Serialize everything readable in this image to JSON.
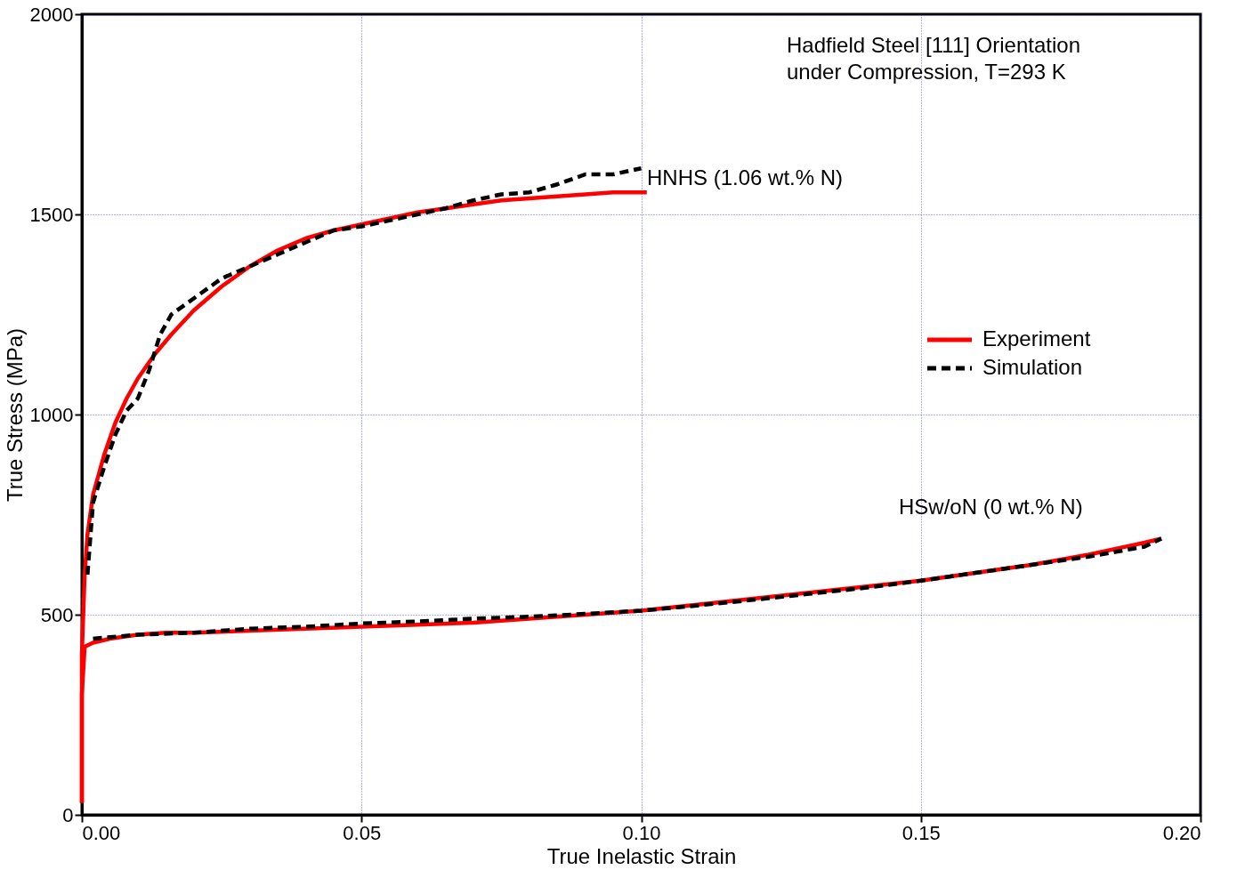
{
  "chart_data": {
    "type": "line",
    "xlabel": "True Inelastic Strain",
    "ylabel": "True Stress (MPa)",
    "xlim": [
      0,
      0.2
    ],
    "ylim": [
      0,
      2000
    ],
    "xticks": [
      {
        "value": 0,
        "label": "0.00"
      },
      {
        "value": 0.05,
        "label": "0.05"
      },
      {
        "value": 0.1,
        "label": "0.10"
      },
      {
        "value": 0.15,
        "label": "0.15"
      },
      {
        "value": 0.2,
        "label": "0.20"
      }
    ],
    "yticks": [
      0,
      500,
      1000,
      1500,
      2000
    ],
    "grid": true,
    "legend": "right",
    "annotations": [
      "Hadfield Steel [111] Orientation\nunder Compression, T=293 K",
      "HNHS (1.06 wt.% N)",
      "HSw/oN (0 wt.% N)"
    ],
    "series": [
      {
        "name": "Experiment",
        "color": "#ff0000",
        "line_style": "solid",
        "x": [
          0,
          0,
          0.0005,
          0.001,
          0.002,
          0.004,
          0.006,
          0.008,
          0.01,
          0.013,
          0.016,
          0.02,
          0.025,
          0.03,
          0.035,
          0.04,
          0.045,
          0.05,
          0.055,
          0.06,
          0.065,
          0.07,
          0.075,
          0.08,
          0.085,
          0.09,
          0.095,
          0.101
        ],
        "values": [
          30,
          400,
          600,
          700,
          800,
          900,
          980,
          1040,
          1090,
          1150,
          1200,
          1260,
          1320,
          1370,
          1410,
          1440,
          1460,
          1475,
          1490,
          1505,
          1515,
          1525,
          1535,
          1540,
          1545,
          1550,
          1555,
          1555
        ]
      },
      {
        "name": "Simulation",
        "color": "#000000",
        "line_style": "dashed",
        "x": [
          0.001,
          0.002,
          0.004,
          0.006,
          0.008,
          0.01,
          0.012,
          0.014,
          0.016,
          0.02,
          0.025,
          0.03,
          0.035,
          0.04,
          0.045,
          0.05,
          0.055,
          0.06,
          0.065,
          0.07,
          0.075,
          0.08,
          0.085,
          0.09,
          0.095,
          0.1
        ],
        "values": [
          600,
          780,
          870,
          950,
          1010,
          1040,
          1110,
          1200,
          1250,
          1290,
          1340,
          1370,
          1400,
          1430,
          1460,
          1470,
          1485,
          1500,
          1515,
          1535,
          1550,
          1555,
          1575,
          1600,
          1600,
          1615
        ]
      },
      {
        "color": "#ff0000",
        "line_style": "solid",
        "x": [
          0,
          0,
          0.0005,
          0.002,
          0.005,
          0.01,
          0.015,
          0.02,
          0.03,
          0.04,
          0.05,
          0.06,
          0.07,
          0.08,
          0.09,
          0.1,
          0.11,
          0.12,
          0.13,
          0.14,
          0.15,
          0.16,
          0.17,
          0.18,
          0.19,
          0.193
        ],
        "values": [
          30,
          300,
          420,
          430,
          440,
          450,
          455,
          455,
          460,
          465,
          470,
          475,
          480,
          490,
          500,
          510,
          525,
          540,
          555,
          570,
          585,
          605,
          625,
          650,
          680,
          690
        ]
      },
      {
        "color": "#000000",
        "line_style": "dashed",
        "x": [
          0.002,
          0.01,
          0.02,
          0.03,
          0.04,
          0.05,
          0.06,
          0.07,
          0.08,
          0.09,
          0.1,
          0.11,
          0.12,
          0.13,
          0.14,
          0.15,
          0.16,
          0.17,
          0.18,
          0.19,
          0.193
        ],
        "values": [
          440,
          450,
          455,
          465,
          470,
          478,
          483,
          490,
          495,
          502,
          510,
          523,
          537,
          552,
          567,
          585,
          605,
          625,
          645,
          670,
          690
        ]
      }
    ]
  }
}
